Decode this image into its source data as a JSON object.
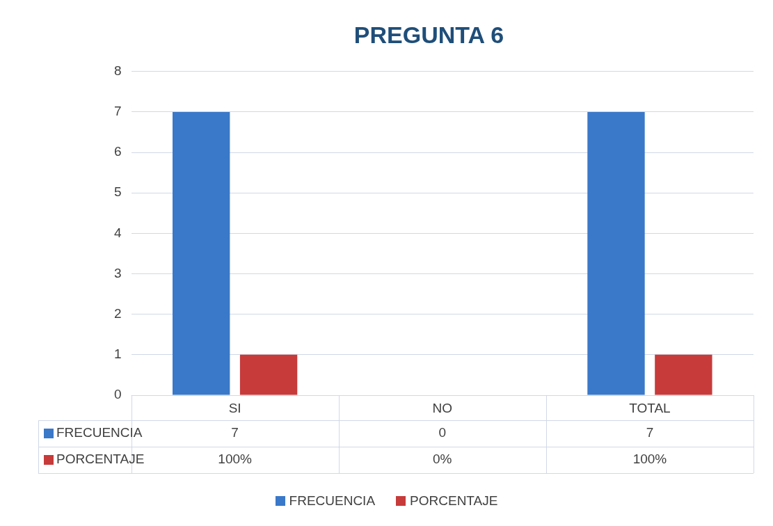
{
  "chart_data": {
    "type": "bar",
    "title": "PREGUNTA 6",
    "categories": [
      "SI",
      "NO",
      "TOTAL"
    ],
    "series": [
      {
        "name": "FRECUENCIA",
        "color": "#3a78c9",
        "values": [
          7,
          0,
          7
        ],
        "value_labels": [
          "7",
          "0",
          "7"
        ]
      },
      {
        "name": "PORCENTAJE",
        "color": "#c73b3b",
        "values": [
          1,
          0,
          1
        ],
        "value_labels": [
          "100%",
          "0%",
          "100%"
        ]
      }
    ],
    "ylim": [
      0,
      8
    ],
    "yticks": [
      0,
      1,
      2,
      3,
      4,
      5,
      6,
      7,
      8
    ],
    "grid": "y",
    "legend": "bottom"
  }
}
